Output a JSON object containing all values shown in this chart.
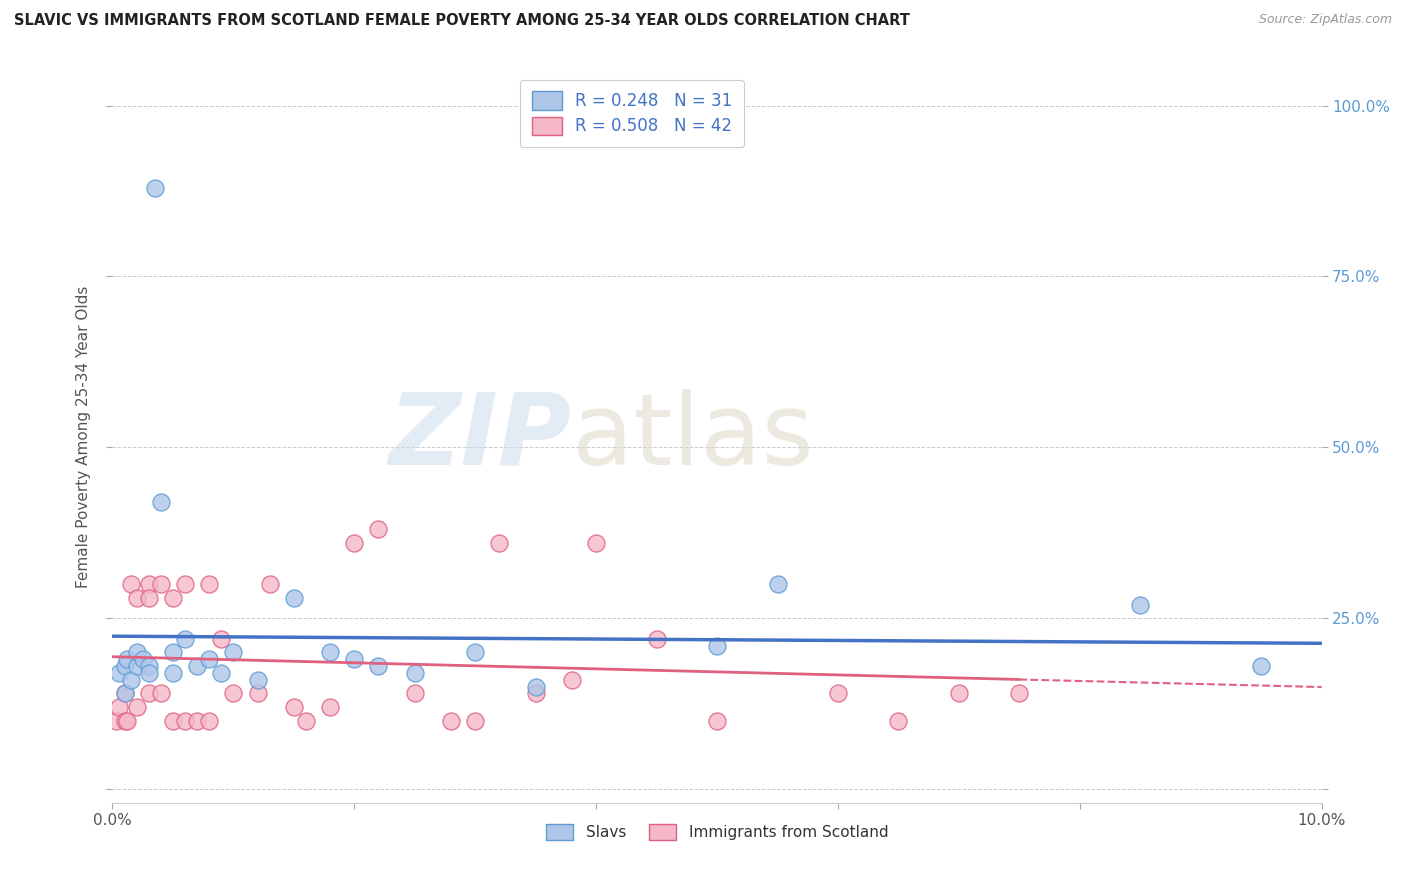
{
  "title": "SLAVIC VS IMMIGRANTS FROM SCOTLAND FEMALE POVERTY AMONG 25-34 YEAR OLDS CORRELATION CHART",
  "source": "Source: ZipAtlas.com",
  "ylabel": "Female Poverty Among 25-34 Year Olds",
  "xlim": [
    0.0,
    0.1
  ],
  "ylim": [
    -0.02,
    1.05
  ],
  "ytick_pos": [
    0.0,
    0.25,
    0.5,
    0.75,
    1.0
  ],
  "ytick_labels": [
    "",
    "25.0%",
    "50.0%",
    "75.0%",
    "100.0%"
  ],
  "xtick_pos": [
    0.0,
    0.02,
    0.04,
    0.06,
    0.08,
    0.1
  ],
  "xtick_labels": [
    "0.0%",
    "",
    "",
    "",
    "",
    "10.0%"
  ],
  "slavic_R": 0.248,
  "slavic_N": 31,
  "scotland_R": 0.508,
  "scotland_N": 42,
  "slavic_color": "#aec6e8",
  "slavic_edge_color": "#5b9bd5",
  "scotland_color": "#f4b8c8",
  "scotland_edge_color": "#e06080",
  "slavic_line_color": "#4472c4",
  "scotland_line_color": "#e06080",
  "slavic_x": [
    0.0005,
    0.001,
    0.001,
    0.0012,
    0.0015,
    0.002,
    0.002,
    0.0025,
    0.003,
    0.003,
    0.0035,
    0.004,
    0.005,
    0.005,
    0.006,
    0.007,
    0.008,
    0.009,
    0.01,
    0.012,
    0.015,
    0.018,
    0.02,
    0.022,
    0.025,
    0.03,
    0.035,
    0.05,
    0.055,
    0.085,
    0.095
  ],
  "slavic_y": [
    0.17,
    0.14,
    0.18,
    0.19,
    0.16,
    0.18,
    0.2,
    0.19,
    0.18,
    0.17,
    0.88,
    0.42,
    0.2,
    0.17,
    0.22,
    0.18,
    0.19,
    0.17,
    0.2,
    0.16,
    0.28,
    0.2,
    0.19,
    0.18,
    0.17,
    0.2,
    0.15,
    0.21,
    0.3,
    0.27,
    0.18
  ],
  "scotland_x": [
    0.0003,
    0.0005,
    0.001,
    0.001,
    0.0012,
    0.0015,
    0.002,
    0.002,
    0.003,
    0.003,
    0.003,
    0.004,
    0.004,
    0.005,
    0.005,
    0.006,
    0.006,
    0.007,
    0.008,
    0.008,
    0.009,
    0.01,
    0.012,
    0.013,
    0.015,
    0.016,
    0.018,
    0.02,
    0.022,
    0.025,
    0.028,
    0.03,
    0.032,
    0.035,
    0.038,
    0.04,
    0.045,
    0.05,
    0.06,
    0.065,
    0.07,
    0.075
  ],
  "scotland_y": [
    0.1,
    0.12,
    0.1,
    0.14,
    0.1,
    0.3,
    0.28,
    0.12,
    0.3,
    0.14,
    0.28,
    0.3,
    0.14,
    0.28,
    0.1,
    0.3,
    0.1,
    0.1,
    0.1,
    0.3,
    0.22,
    0.14,
    0.14,
    0.3,
    0.12,
    0.1,
    0.12,
    0.36,
    0.38,
    0.14,
    0.1,
    0.1,
    0.36,
    0.14,
    0.16,
    0.36,
    0.22,
    0.1,
    0.14,
    0.1,
    0.14,
    0.14
  ]
}
